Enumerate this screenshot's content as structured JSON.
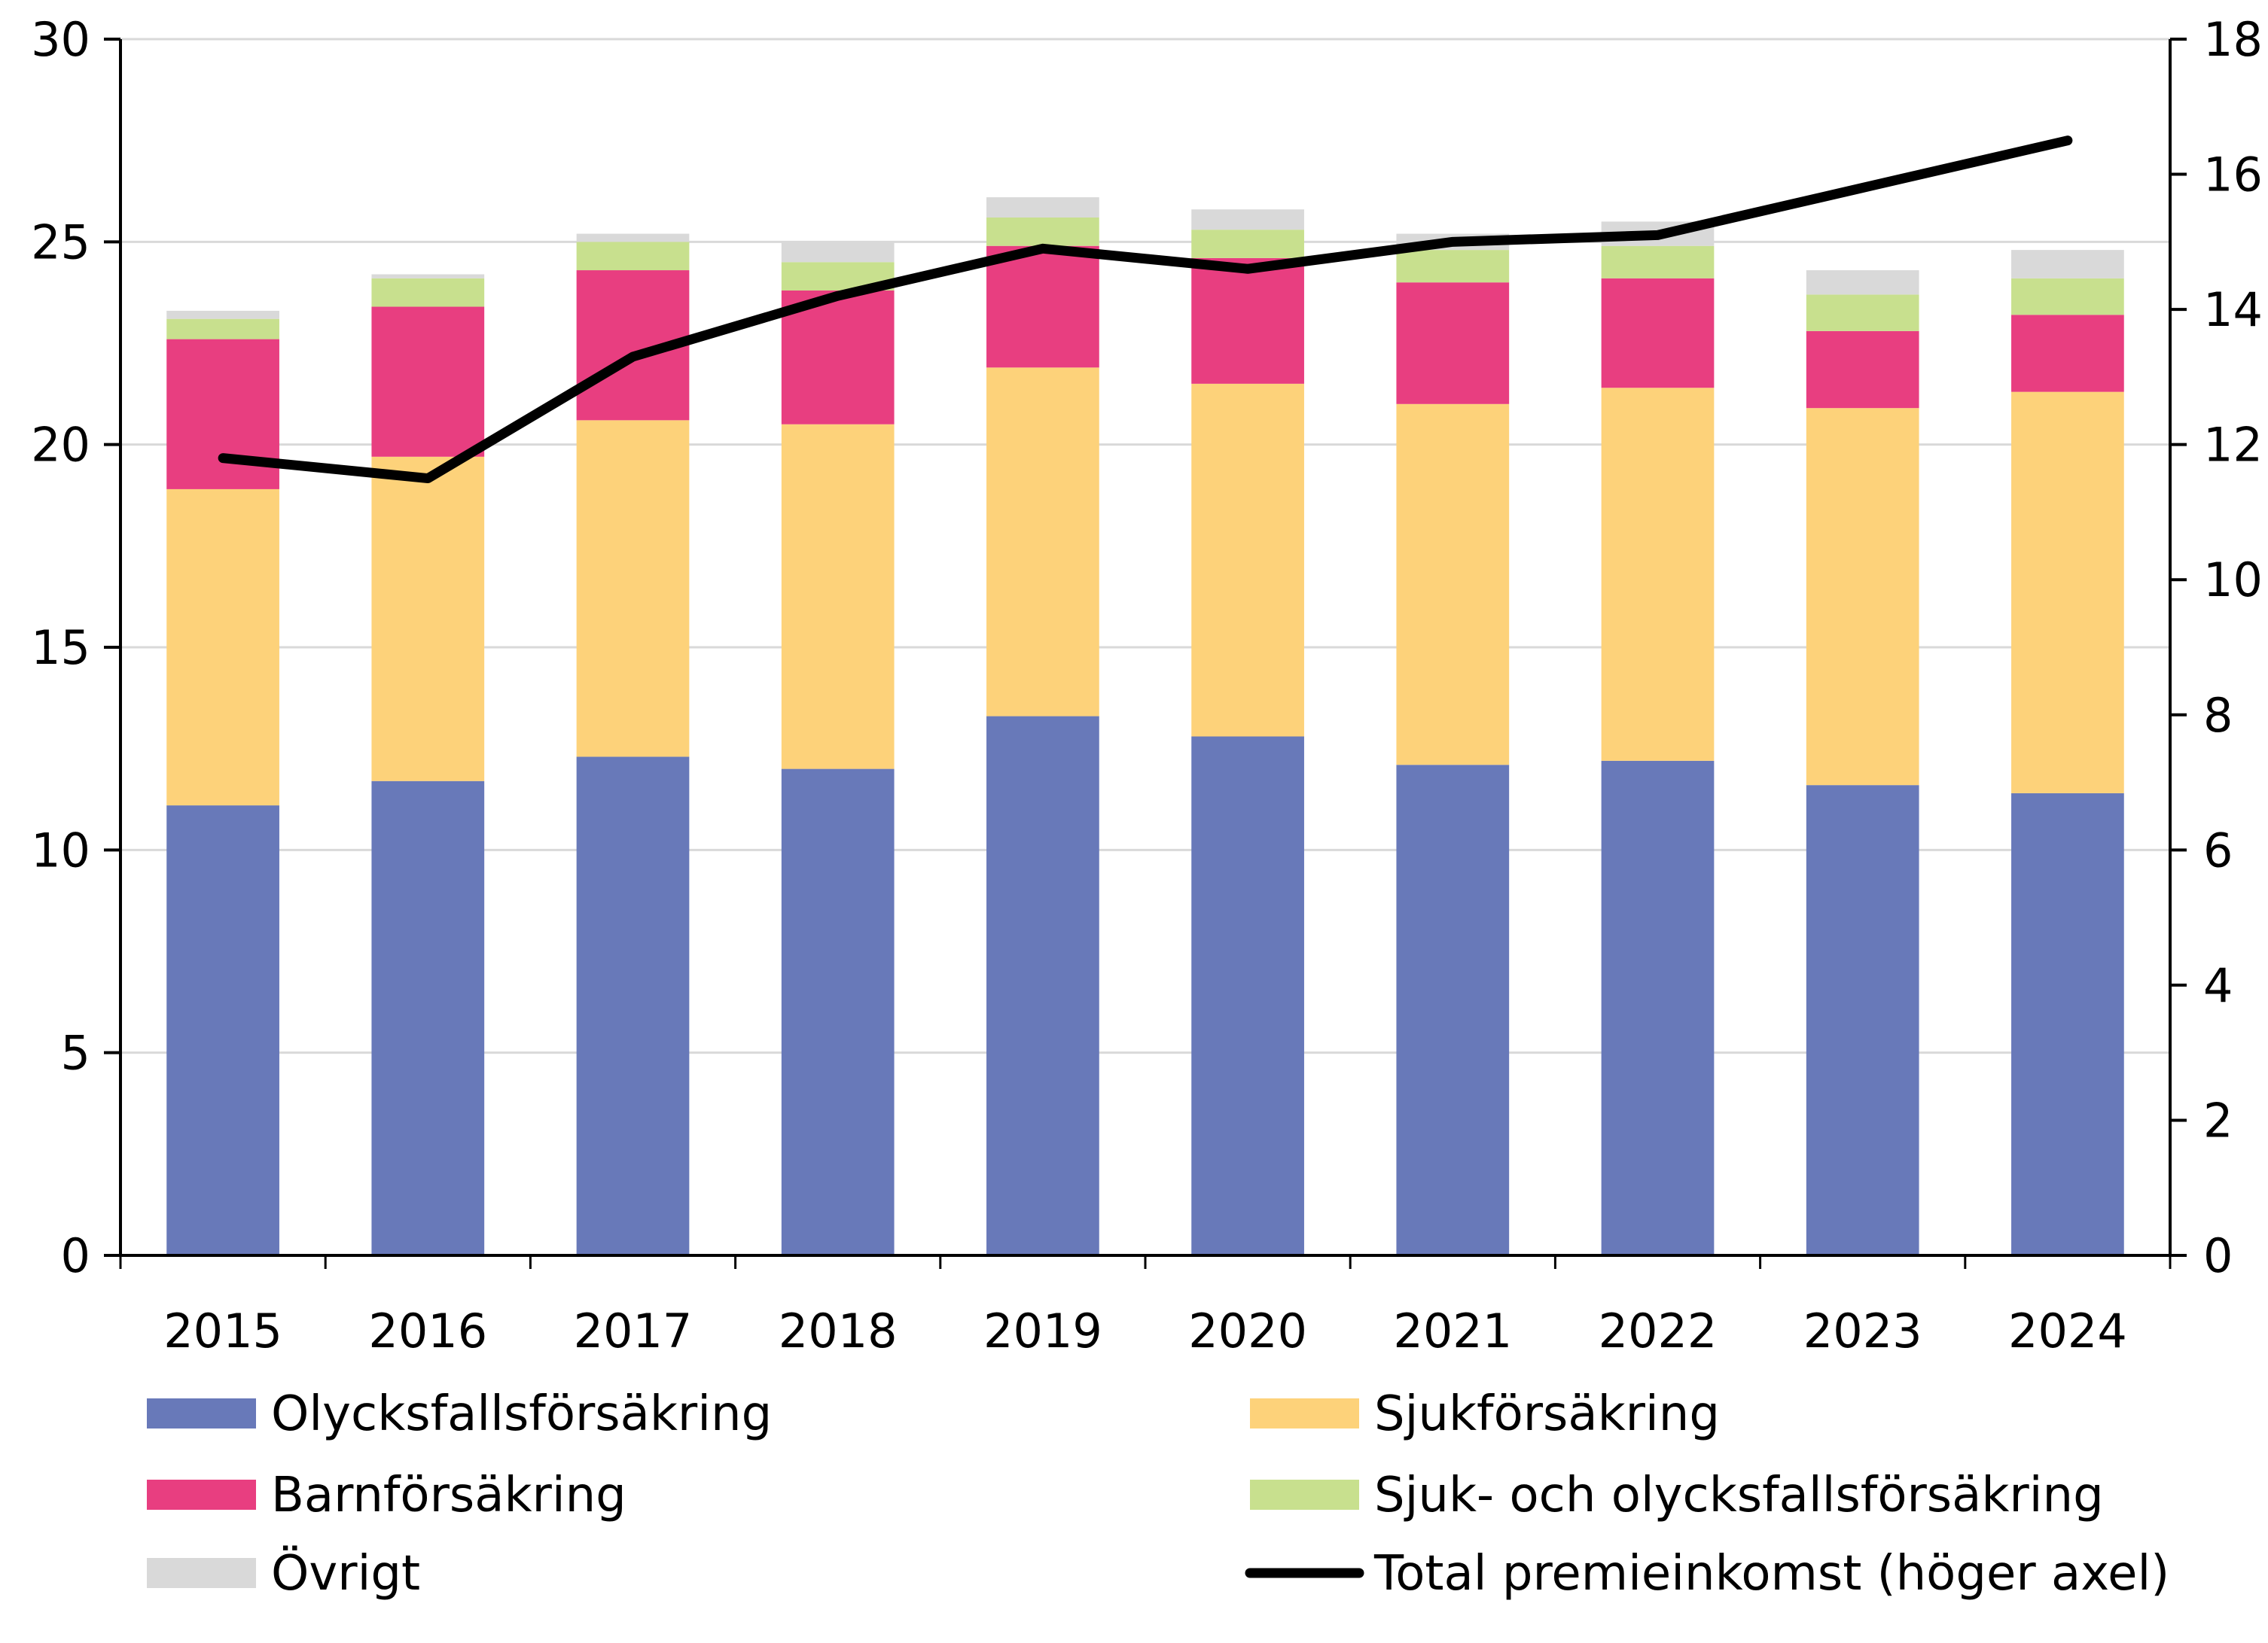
{
  "chart_data": {
    "type": "bar",
    "stacked": true,
    "categories": [
      "2015",
      "2016",
      "2017",
      "2018",
      "2019",
      "2020",
      "2021",
      "2022",
      "2023",
      "2024"
    ],
    "series": [
      {
        "name": "Olycksfallsförsäkring",
        "color": "#6879b9",
        "axis": "left",
        "values": [
          11.1,
          11.7,
          12.3,
          12.0,
          13.3,
          12.8,
          12.1,
          12.2,
          11.6,
          11.4
        ]
      },
      {
        "name": "Sjukförsäkring",
        "color": "#fdd27a",
        "axis": "left",
        "values": [
          7.8,
          8.0,
          8.3,
          8.5,
          8.6,
          8.7,
          8.9,
          9.2,
          9.3,
          9.9
        ]
      },
      {
        "name": "Barnförsäkring",
        "color": "#e83e80",
        "axis": "left",
        "values": [
          3.7,
          3.7,
          3.7,
          3.3,
          3.0,
          3.1,
          3.0,
          2.7,
          1.9,
          1.9
        ]
      },
      {
        "name": "Sjuk- och olycksfallsförsäkring",
        "color": "#c8e08e",
        "axis": "left",
        "values": [
          0.5,
          0.7,
          0.7,
          0.7,
          0.7,
          0.7,
          0.8,
          0.8,
          0.9,
          0.9
        ]
      },
      {
        "name": "Övrigt",
        "color": "#d9d9d9",
        "axis": "left",
        "values": [
          0.2,
          0.1,
          0.2,
          0.5,
          0.5,
          0.5,
          0.4,
          0.6,
          0.6,
          0.7
        ]
      }
    ],
    "line_series": {
      "name": "Total premieinkomst (höger axel)",
      "color": "#000000",
      "axis": "right",
      "values": [
        11.8,
        11.5,
        13.3,
        14.2,
        14.9,
        14.6,
        15.0,
        15.1,
        15.8,
        16.5
      ]
    },
    "left_axis": {
      "min": 0,
      "max": 30,
      "ticks": [
        0,
        5,
        10,
        15,
        20,
        25,
        30
      ]
    },
    "right_axis": {
      "min": 0,
      "max": 18,
      "ticks": [
        0,
        2,
        4,
        6,
        8,
        10,
        12,
        14,
        16,
        18
      ]
    },
    "legend_position": "bottom",
    "grid": true
  }
}
